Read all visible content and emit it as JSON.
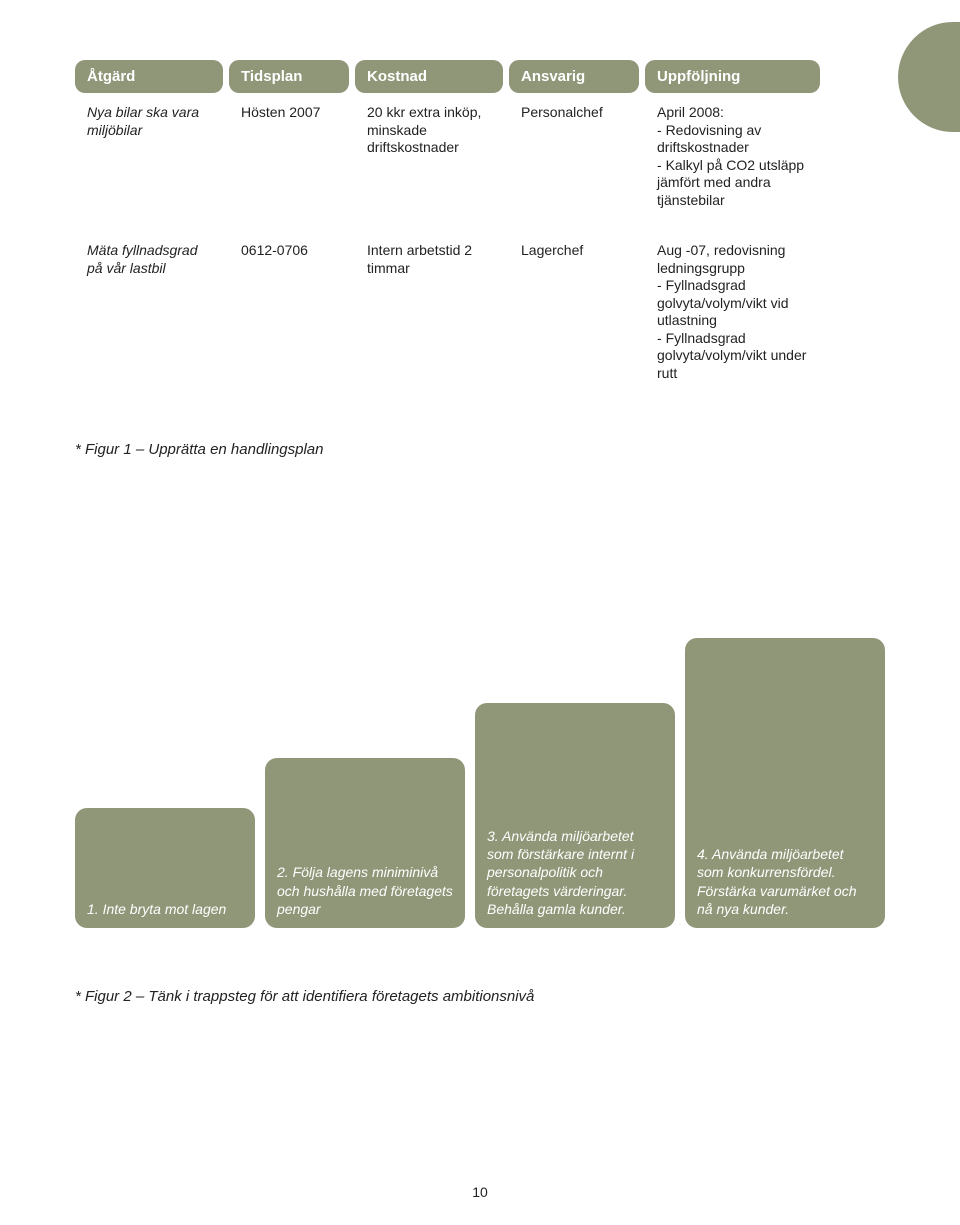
{
  "palette": {
    "olive": "#8f9778",
    "white": "#ffffff",
    "text": "#222222"
  },
  "table": {
    "headers": [
      "Åtgärd",
      "Tidsplan",
      "Kostnad",
      "Ansvarig",
      "Uppföljning"
    ],
    "rows": [
      {
        "atgard": "Nya bilar ska vara miljöbilar",
        "tidsplan": "Hösten 2007",
        "kostnad": "20 kkr extra inköp, minskade driftskostnader",
        "ansvarig": "Personalchef",
        "uppfoljning_lead": "April 2008:",
        "uppfoljning_items": [
          "Redovisning av driftskostnader",
          "Kalkyl på CO2 utsläpp jämfört med andra tjänstebilar"
        ]
      },
      {
        "atgard": "Mäta fyllnadsgrad på vår lastbil",
        "tidsplan": "0612-0706",
        "kostnad": "Intern arbetstid 2 timmar",
        "ansvarig": "Lagerchef",
        "uppfoljning_lead": "Aug -07, redovisning ledningsgrupp",
        "uppfoljning_items": [
          "Fyllnadsgrad golvyta/volym/vikt vid utlastning",
          "Fyllnadsgrad golvyta/volym/vikt under rutt"
        ]
      }
    ]
  },
  "caption1": "* Figur 1 – Upprätta en handlingsplan",
  "stairs": [
    "1. Inte bryta mot lagen",
    "2. Följa lagens miniminivå och hushålla med företagets pengar",
    "3. Använda miljöarbetet som förstärkare internt i personalpolitik och företagets värderingar. Behålla gamla kunder.",
    "4. Använda miljöarbetet som konkurrensfördel. Förstärka varumärket och nå nya kunder."
  ],
  "caption2": "* Figur 2 – Tänk i trappsteg för att identifiera företagets ambitionsnivå",
  "page_number": "10"
}
